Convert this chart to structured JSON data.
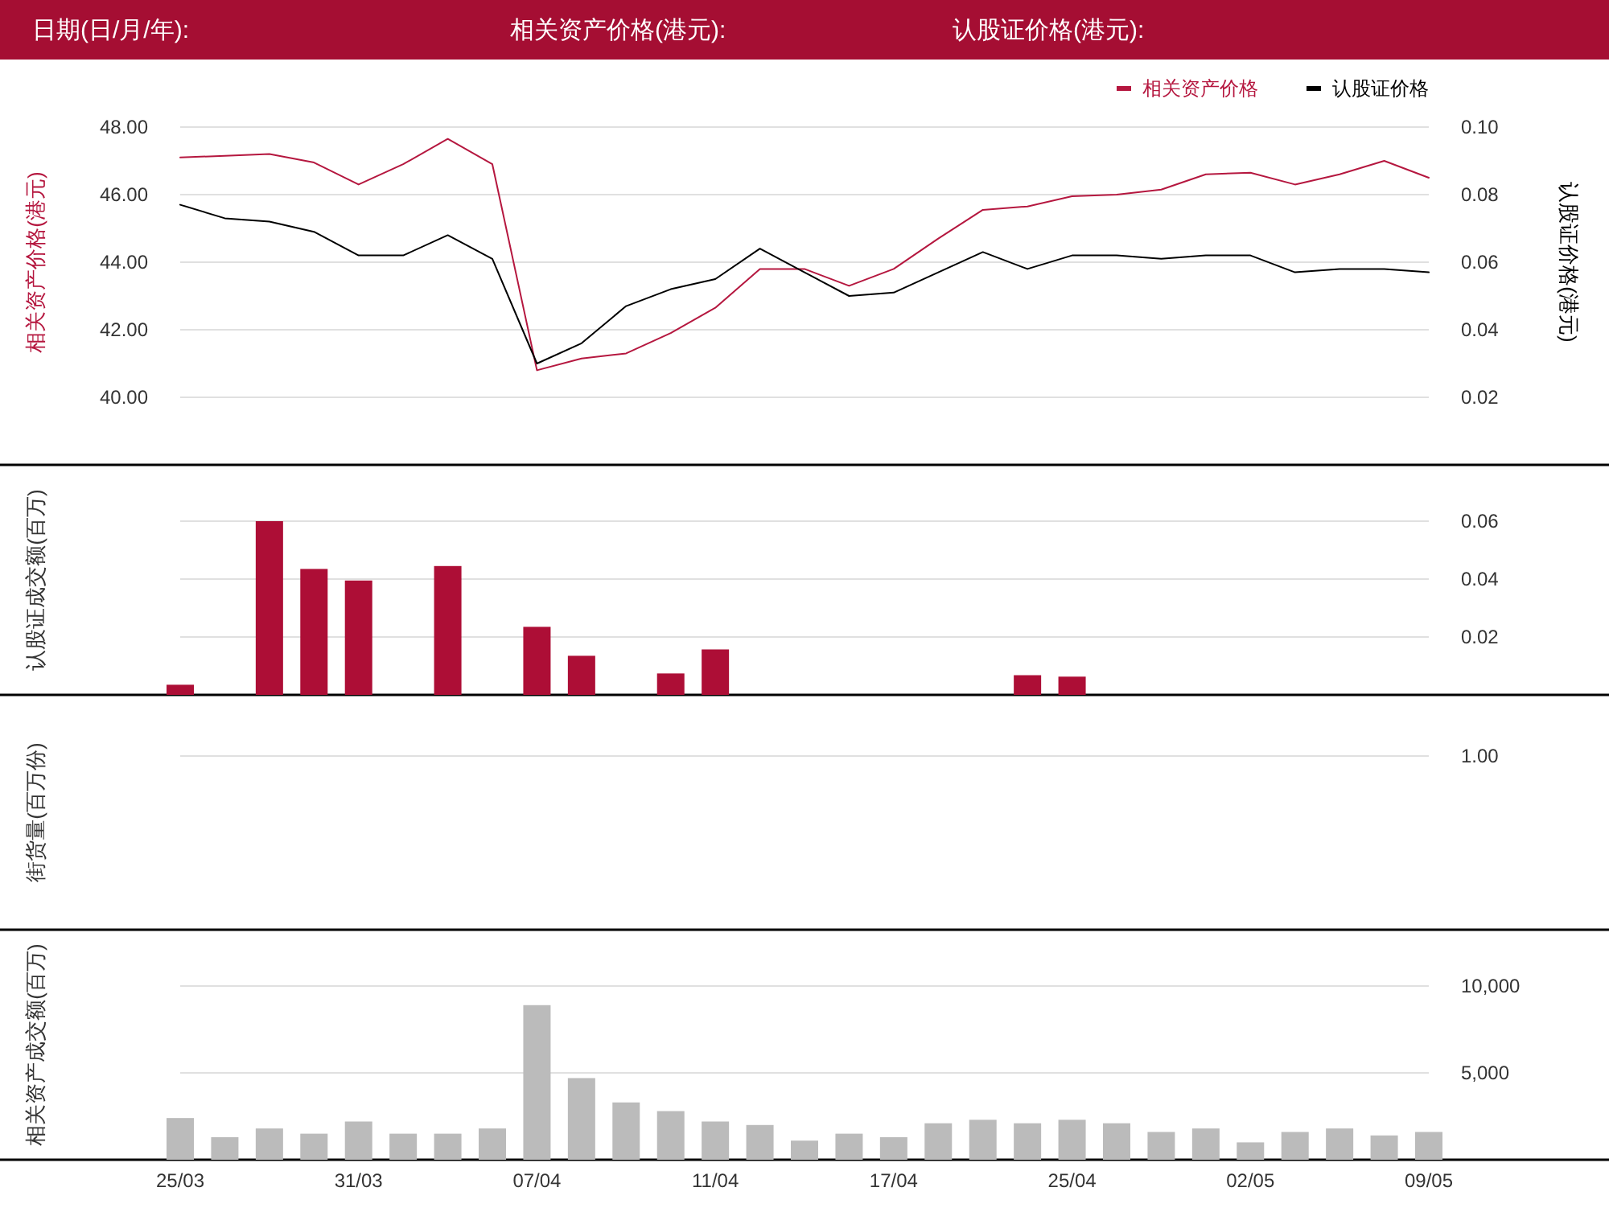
{
  "chart_data": [
    {
      "type": "line",
      "annotations": [
        "日期(日/月/年):",
        "相关资产价格(港元):",
        "认股证价格(港元):"
      ],
      "ylabel": "相关资产价格(港元)",
      "y2label": "认股证价格(港元)",
      "categories": [
        null,
        null,
        null,
        null,
        null,
        null,
        null,
        null,
        null,
        null,
        null,
        null,
        null,
        null,
        null,
        null,
        null,
        null,
        null,
        null,
        null,
        null,
        null,
        null,
        null,
        null,
        null,
        null,
        null
      ],
      "series": [
        {
          "name": "相关资产价格",
          "color": "#b5173f",
          "values": [
            47.1,
            47.15,
            47.2,
            46.95,
            46.3,
            46.9,
            47.65,
            46.9,
            40.8,
            41.15,
            41.3,
            41.9,
            42.65,
            43.8,
            43.8,
            43.3,
            43.8,
            44.7,
            45.55,
            45.65,
            45.95,
            46.0,
            46.15,
            46.6,
            46.65,
            46.3,
            46.6,
            47.0,
            46.5
          ]
        },
        {
          "name": "认股证价格",
          "color": "#000000",
          "axis": "y2",
          "values": [
            0.077,
            0.073,
            0.072,
            0.069,
            0.062,
            0.062,
            0.068,
            0.061,
            0.03,
            0.036,
            0.047,
            0.052,
            0.055,
            0.064,
            0.057,
            0.05,
            0.051,
            0.057,
            0.063,
            0.058,
            0.062,
            0.062,
            0.061,
            0.062,
            0.062,
            0.057,
            0.058,
            0.058,
            0.057
          ]
        }
      ],
      "ylim": [
        38,
        48
      ],
      "yticks": [
        {
          "value": 40,
          "label": "40.00"
        },
        {
          "value": 42,
          "label": "42.00"
        },
        {
          "value": 44,
          "label": "44.00"
        },
        {
          "value": 46,
          "label": "46.00"
        },
        {
          "value": 48,
          "label": "48.00"
        }
      ],
      "y2lim": [
        0,
        0.1
      ],
      "y2ticks": [
        {
          "value": 0.02,
          "label": "0.02"
        },
        {
          "value": 0.04,
          "label": "0.04"
        },
        {
          "value": 0.06,
          "label": "0.06"
        },
        {
          "value": 0.08,
          "label": "0.08"
        },
        {
          "value": 0.1,
          "label": "0.10"
        }
      ],
      "grid": true,
      "legend": "top right",
      "tick_labels": "y"
    },
    {
      "type": "bar",
      "ylabel": "认股证成交额(百万)",
      "categories": [
        null,
        null,
        null,
        null,
        null,
        null,
        null,
        null,
        null,
        null,
        null,
        null,
        null,
        null,
        null,
        null,
        null,
        null,
        null,
        null,
        null,
        null,
        null,
        null,
        null,
        null,
        null,
        null,
        null
      ],
      "values": [
        0.0035,
        null,
        0.06,
        0.0435,
        0.0395,
        null,
        0.0445,
        null,
        0.0235,
        0.0135,
        null,
        0.0074,
        0.0157,
        null,
        null,
        null,
        null,
        null,
        null,
        0.0068,
        0.0063,
        null,
        null,
        null,
        null,
        null,
        null,
        null,
        null
      ],
      "color": "#ad0e36",
      "ylim": [
        0,
        0.06
      ],
      "yticks": [
        0.02,
        0.04,
        0.06
      ],
      "grid": true,
      "tick_labels": "y"
    },
    {
      "type": "other",
      "ylabel": "街货量(百万份)",
      "annotations": [
        "1.00"
      ]
    },
    {
      "type": "bar",
      "ylabel": "相关资产成交额(百万)",
      "categories": [
        "25/03",
        null,
        null,
        null,
        "31/03",
        null,
        null,
        null,
        "07/04",
        null,
        null,
        null,
        "11/04",
        null,
        null,
        null,
        "17/04",
        null,
        null,
        null,
        "25/04",
        null,
        null,
        null,
        "02/05",
        null,
        null,
        null,
        "09/05"
      ],
      "values": [
        2400,
        1300,
        1800,
        1500,
        2200,
        1500,
        1500,
        1800,
        8900,
        4700,
        3300,
        2800,
        2200,
        2000,
        1100,
        1500,
        1300,
        2100,
        2300,
        2100,
        2300,
        2100,
        1600,
        1800,
        1000,
        1600,
        1800,
        1400,
        1600
      ],
      "color": "#bbbbbb",
      "ylim": [
        0,
        10000
      ],
      "yticks": [
        {
          "value": 5000,
          "label": "5,000"
        },
        {
          "value": 10000,
          "label": "10,000"
        }
      ],
      "grid": true
    }
  ]
}
